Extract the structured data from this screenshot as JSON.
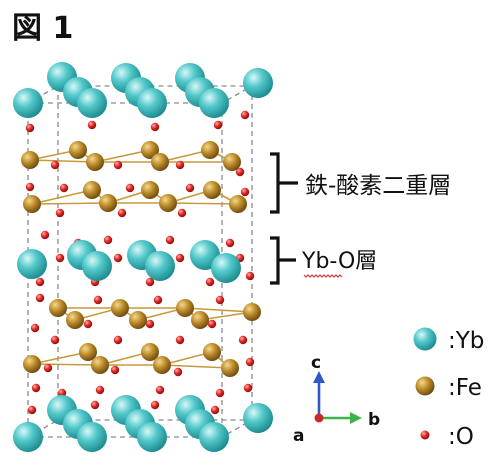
{
  "figure": {
    "title": "図 1",
    "annotations": {
      "fe_o_bilayer": "鉄-酸素二重層",
      "yb_o_layer": "Yb-O層"
    },
    "axes": {
      "c": "c",
      "b": "b",
      "a": "a"
    },
    "legend": [
      {
        "label": ":Yb",
        "element": "Yb",
        "color": "#47c2c4"
      },
      {
        "label": ":Fe",
        "element": "Fe",
        "color": "#b8862a"
      },
      {
        "label": ":O",
        "element": "O",
        "color": "#d8262a"
      }
    ]
  }
}
